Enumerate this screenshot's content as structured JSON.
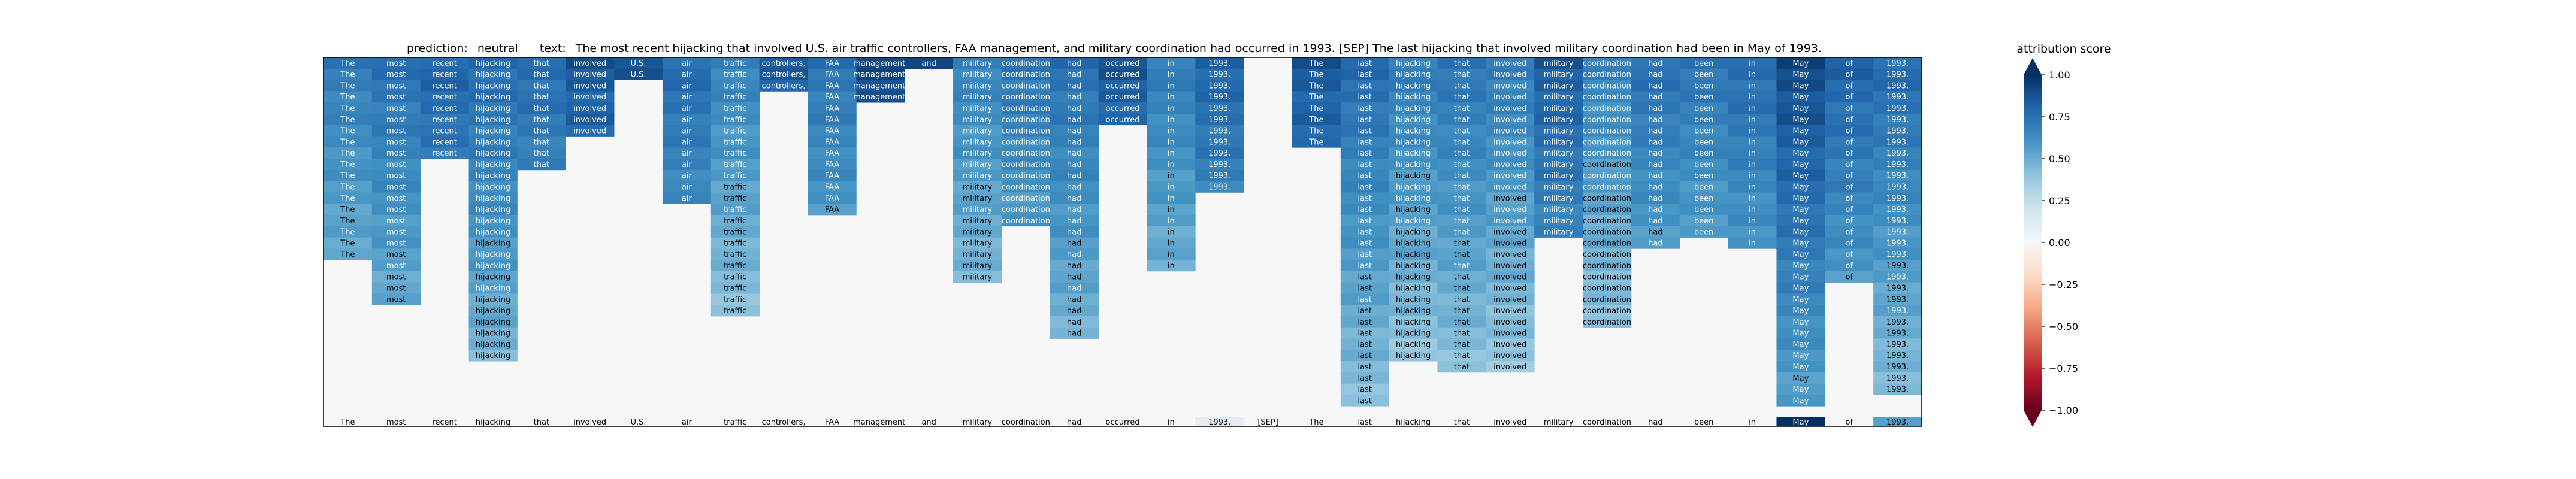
{
  "chart_data": {
    "type": "heatmap",
    "title_prediction_label": "prediction:",
    "prediction": "neutral",
    "title_text_label": "text:",
    "text": "The most recent hijacking that involved U.S. air traffic controllers, FAA management, and military coordination had occurred in 1993. [SEP] The last hijacking that involved military coordination had been in May of 1993.",
    "tokens": [
      "The",
      "most",
      "recent",
      "hijacking",
      "that",
      "involved",
      "U.S.",
      "air",
      "traffic",
      "controllers,",
      "FAA",
      "management,",
      "and",
      "military",
      "coordination",
      "had",
      "occurred",
      "in",
      "1993.",
      "[SEP]",
      "The",
      "last",
      "hijacking",
      "that",
      "involved",
      "military",
      "coordination",
      "had",
      "been",
      "in",
      "May",
      "of",
      "1993."
    ],
    "bottom_row_scores": [
      0,
      0,
      0,
      0,
      0,
      0,
      0,
      0,
      0,
      0,
      0,
      0,
      0,
      0,
      0,
      0,
      0,
      0,
      0.1,
      0,
      0,
      0,
      0,
      0,
      0,
      0,
      0,
      0,
      0,
      0,
      1.0,
      0,
      0.55
    ],
    "column_last_row": [
      17,
      21,
      8,
      26,
      9,
      6,
      1,
      12,
      22,
      2,
      13,
      3,
      0,
      19,
      14,
      24,
      5,
      18,
      11,
      -1,
      7,
      30,
      26,
      27,
      27,
      15,
      23,
      16,
      15,
      16,
      30,
      19,
      29
    ],
    "column_score": [
      0.75,
      0.8,
      0.85,
      0.82,
      0.82,
      0.9,
      0.9,
      0.82,
      0.72,
      0.9,
      0.78,
      0.95,
      1.0,
      0.72,
      0.78,
      0.8,
      0.9,
      0.75,
      0.85,
      0,
      0.9,
      0.82,
      0.75,
      0.78,
      0.75,
      0.88,
      0.72,
      0.8,
      0.78,
      0.82,
      0.95,
      0.85,
      0.82
    ],
    "colorbar": {
      "label": "attribution score",
      "ticks": [
        "1.00",
        "0.75",
        "0.50",
        "0.25",
        "0.00",
        "−0.25",
        "−0.50",
        "−0.75",
        "−1.00"
      ],
      "range": [
        -1,
        1
      ],
      "colors": [
        "#67001f",
        "#b2182b",
        "#d6604d",
        "#f4a582",
        "#fddbc7",
        "#f7f7f7",
        "#d1e5f0",
        "#92c5de",
        "#4393c3",
        "#2166ac",
        "#053061"
      ]
    }
  }
}
